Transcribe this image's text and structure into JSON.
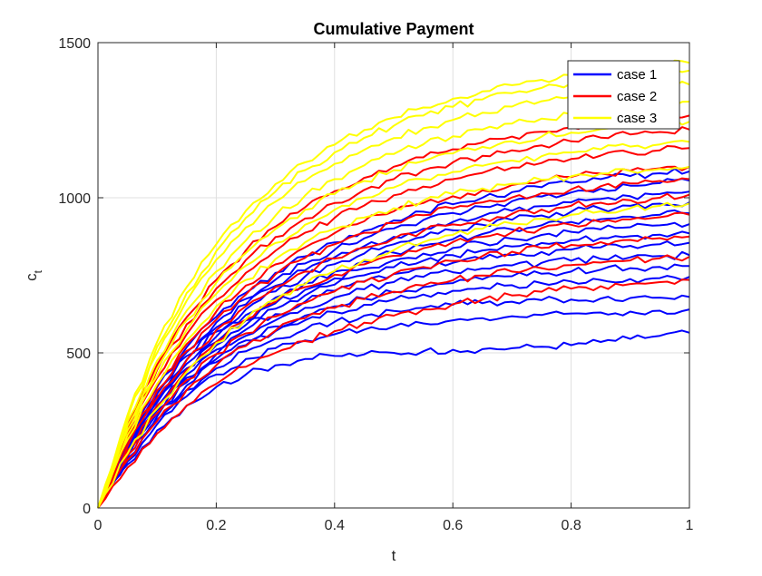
{
  "chart_data": {
    "type": "line",
    "title": "Cumulative Payment",
    "xlabel": "t",
    "ylabel_main": "c",
    "ylabel_sub": "t",
    "xlim": [
      0,
      1
    ],
    "ylim": [
      0,
      1500
    ],
    "xticks": [
      0,
      0.2,
      0.4,
      0.6,
      0.8,
      1
    ],
    "xtick_labels": [
      "0",
      "0.2",
      "0.4",
      "0.6",
      "0.8",
      "1"
    ],
    "yticks": [
      0,
      500,
      1000,
      1500
    ],
    "ytick_labels": [
      "0",
      "500",
      "1000",
      "1500"
    ],
    "grid": true,
    "legend_position": "top-right",
    "x": [
      0,
      0.05,
      0.1,
      0.15,
      0.2,
      0.25,
      0.3,
      0.35,
      0.4,
      0.45,
      0.5,
      0.55,
      0.6,
      0.65,
      0.7,
      0.75,
      0.8,
      0.85,
      0.9,
      0.95,
      1
    ],
    "series": [
      {
        "name": "case 1",
        "color": "#0000ff",
        "paths": [
          [
            0,
            140,
            250,
            330,
            390,
            430,
            460,
            480,
            490,
            495,
            500,
            505,
            510,
            512,
            515,
            520,
            525,
            535,
            545,
            555,
            565
          ],
          [
            0,
            150,
            270,
            360,
            430,
            480,
            515,
            540,
            560,
            575,
            585,
            595,
            605,
            612,
            618,
            622,
            627,
            630,
            633,
            636,
            640
          ],
          [
            0,
            160,
            285,
            380,
            450,
            505,
            545,
            575,
            600,
            620,
            635,
            645,
            655,
            660,
            665,
            670,
            672,
            675,
            677,
            678,
            680
          ],
          [
            0,
            165,
            295,
            395,
            470,
            525,
            570,
            605,
            632,
            655,
            672,
            688,
            700,
            710,
            718,
            725,
            730,
            735,
            738,
            741,
            745
          ],
          [
            0,
            175,
            305,
            405,
            480,
            540,
            585,
            620,
            650,
            675,
            695,
            712,
            725,
            737,
            747,
            755,
            762,
            768,
            773,
            777,
            780
          ],
          [
            0,
            180,
            315,
            420,
            495,
            555,
            605,
            645,
            678,
            705,
            728,
            745,
            760,
            772,
            782,
            790,
            797,
            803,
            808,
            812,
            815
          ],
          [
            0,
            185,
            325,
            430,
            510,
            575,
            625,
            665,
            700,
            730,
            754,
            773,
            790,
            803,
            815,
            825,
            833,
            840,
            845,
            850,
            855
          ],
          [
            0,
            190,
            330,
            440,
            525,
            590,
            642,
            685,
            720,
            750,
            776,
            797,
            815,
            830,
            843,
            854,
            863,
            870,
            876,
            881,
            885
          ],
          [
            0,
            195,
            340,
            450,
            535,
            605,
            660,
            703,
            740,
            772,
            798,
            820,
            838,
            854,
            868,
            880,
            890,
            898,
            905,
            911,
            915
          ],
          [
            0,
            200,
            350,
            465,
            552,
            622,
            678,
            724,
            762,
            795,
            823,
            846,
            866,
            883,
            898,
            911,
            922,
            931,
            939,
            945,
            950
          ],
          [
            0,
            205,
            360,
            478,
            568,
            640,
            698,
            746,
            786,
            820,
            850,
            874,
            895,
            913,
            929,
            943,
            955,
            965,
            974,
            981,
            985
          ],
          [
            0,
            210,
            368,
            490,
            582,
            656,
            716,
            766,
            808,
            844,
            874,
            900,
            922,
            941,
            958,
            973,
            985,
            996,
            1005,
            1012,
            1020
          ],
          [
            0,
            215,
            378,
            502,
            598,
            674,
            736,
            788,
            832,
            869,
            901,
            928,
            951,
            971,
            989,
            1004,
            1017,
            1029,
            1039,
            1047,
            1055
          ],
          [
            0,
            222,
            390,
            518,
            616,
            694,
            758,
            811,
            856,
            894,
            927,
            955,
            979,
            1000,
            1018,
            1034,
            1048,
            1060,
            1070,
            1079,
            1085
          ]
        ]
      },
      {
        "name": "case 2",
        "color": "#ff0000",
        "paths": [
          [
            0,
            130,
            240,
            330,
            400,
            455,
            500,
            538,
            570,
            597,
            620,
            640,
            657,
            672,
            685,
            697,
            707,
            715,
            722,
            728,
            735
          ],
          [
            0,
            155,
            280,
            380,
            460,
            522,
            572,
            612,
            645,
            673,
            697,
            717,
            734,
            749,
            762,
            773,
            783,
            791,
            798,
            805,
            810
          ],
          [
            0,
            170,
            305,
            412,
            496,
            563,
            617,
            661,
            698,
            729,
            755,
            777,
            796,
            812,
            826,
            838,
            848,
            857,
            864,
            870,
            875
          ],
          [
            0,
            185,
            330,
            445,
            535,
            607,
            665,
            712,
            752,
            785,
            813,
            837,
            857,
            874,
            889,
            902,
            913,
            922,
            930,
            937,
            945
          ],
          [
            0,
            200,
            355,
            477,
            573,
            650,
            712,
            762,
            804,
            839,
            868,
            893,
            914,
            932,
            948,
            962,
            974,
            984,
            992,
            1000,
            1010
          ],
          [
            0,
            215,
            378,
            506,
            607,
            688,
            753,
            806,
            850,
            887,
            918,
            944,
            966,
            985,
            1001,
            1015,
            1027,
            1037,
            1046,
            1054,
            1060
          ],
          [
            0,
            225,
            395,
            528,
            633,
            717,
            785,
            840,
            886,
            924,
            956,
            983,
            1005,
            1024,
            1041,
            1055,
            1067,
            1078,
            1087,
            1095,
            1100
          ],
          [
            0,
            240,
            420,
            560,
            670,
            758,
            829,
            887,
            935,
            975,
            1008,
            1036,
            1060,
            1080,
            1097,
            1112,
            1125,
            1136,
            1145,
            1153,
            1160
          ],
          [
            0,
            255,
            445,
            592,
            707,
            799,
            873,
            933,
            983,
            1025,
            1060,
            1089,
            1114,
            1135,
            1153,
            1169,
            1182,
            1194,
            1204,
            1212,
            1220
          ],
          [
            0,
            265,
            462,
            615,
            735,
            830,
            907,
            969,
            1021,
            1064,
            1100,
            1130,
            1156,
            1178,
            1197,
            1213,
            1227,
            1239,
            1249,
            1258,
            1265
          ]
        ]
      },
      {
        "name": "case 3",
        "color": "#ffff00",
        "paths": [
          [
            0,
            220,
            400,
            540,
            650,
            735,
            802,
            856,
            900,
            936,
            966,
            991,
            1012,
            1030,
            1045,
            1058,
            1069,
            1078,
            1086,
            1093,
            1100
          ],
          [
            0,
            235,
            425,
            574,
            690,
            781,
            854,
            913,
            961,
            1000,
            1033,
            1060,
            1083,
            1103,
            1120,
            1134,
            1146,
            1156,
            1165,
            1172,
            1180
          ],
          [
            0,
            250,
            450,
            605,
            726,
            822,
            899,
            961,
            1012,
            1054,
            1089,
            1118,
            1143,
            1164,
            1182,
            1197,
            1210,
            1221,
            1231,
            1239,
            1245
          ],
          [
            0,
            265,
            475,
            636,
            762,
            862,
            942,
            1007,
            1060,
            1104,
            1141,
            1172,
            1198,
            1220,
            1239,
            1255,
            1269,
            1281,
            1291,
            1300,
            1310
          ],
          [
            0,
            280,
            500,
            668,
            800,
            904,
            987,
            1054,
            1109,
            1154,
            1192,
            1224,
            1251,
            1274,
            1294,
            1311,
            1325,
            1337,
            1348,
            1357,
            1365
          ],
          [
            0,
            290,
            520,
            693,
            828,
            935,
            1020,
            1089,
            1146,
            1193,
            1232,
            1265,
            1293,
            1317,
            1337,
            1354,
            1369,
            1382,
            1393,
            1402,
            1410
          ],
          [
            0,
            300,
            535,
            712,
            850,
            958,
            1044,
            1114,
            1171,
            1218,
            1258,
            1291,
            1319,
            1343,
            1363,
            1380,
            1395,
            1407,
            1418,
            1427,
            1435
          ],
          [
            0,
            175,
            320,
            438,
            532,
            608,
            670,
            721,
            764,
            800,
            831,
            857,
            880,
            900,
            917,
            932,
            945,
            956,
            966,
            974,
            982
          ]
        ]
      }
    ]
  }
}
